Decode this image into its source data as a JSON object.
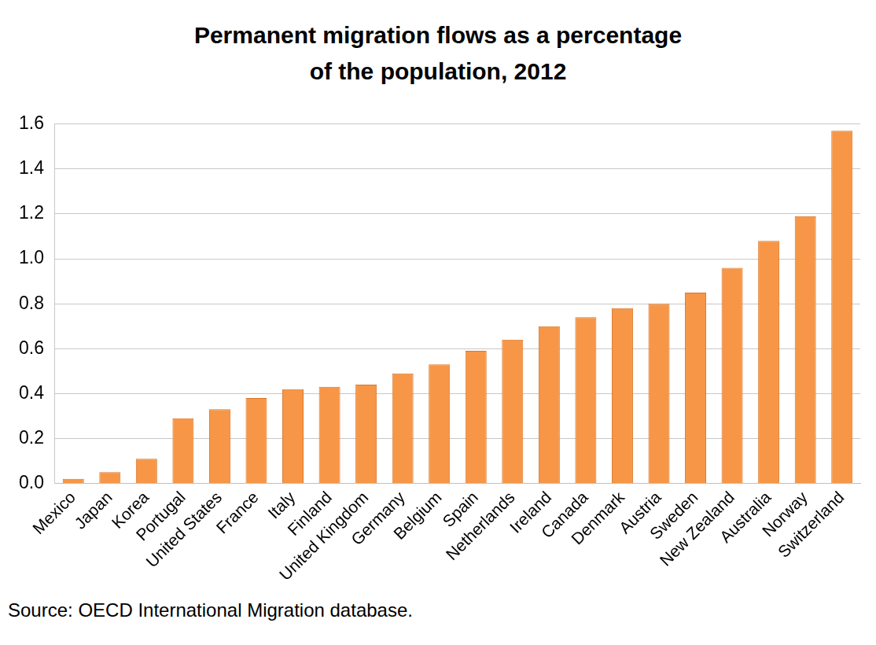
{
  "chart_data": {
    "type": "bar",
    "title": "Permanent migration flows as a percentage of the population, 2012",
    "source": "Source: OECD International Migration database.",
    "categories": [
      "Mexico",
      "Japan",
      "Korea",
      "Portugal",
      "United States",
      "France",
      "Italy",
      "Finland",
      "United Kingdom",
      "Germany",
      "Belgium",
      "Spain",
      "Netherlands",
      "Ireland",
      "Canada",
      "Denmark",
      "Austria",
      "Sweden",
      "New Zealand",
      "Australia",
      "Norway",
      "Switzerland"
    ],
    "values": [
      0.02,
      0.05,
      0.11,
      0.29,
      0.33,
      0.38,
      0.42,
      0.43,
      0.44,
      0.49,
      0.53,
      0.59,
      0.64,
      0.7,
      0.74,
      0.78,
      0.8,
      0.85,
      0.96,
      1.08,
      1.19,
      1.57
    ],
    "color": "#f79646",
    "ylim": [
      0,
      1.6
    ],
    "yticks": [
      {
        "value": 0,
        "label": "0.0"
      },
      0.2,
      0.4,
      0.6,
      0.8,
      {
        "value": 1,
        "label": "1.0"
      },
      1.2,
      1.4,
      1.6
    ],
    "grid": true
  }
}
